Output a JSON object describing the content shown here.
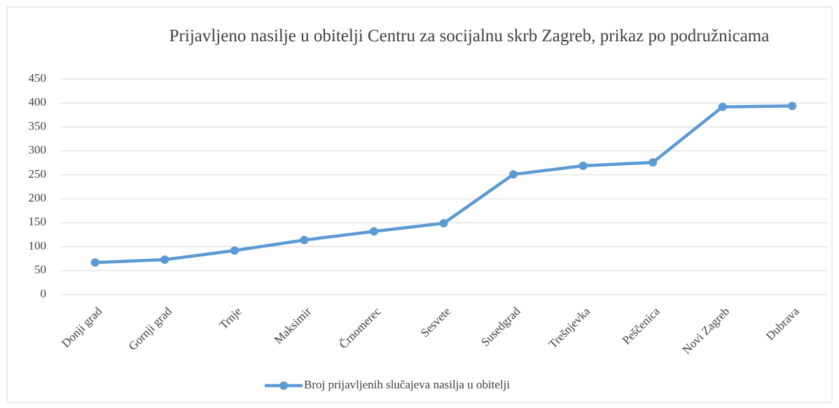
{
  "chart_data": {
    "type": "line",
    "title": "Prijavljeno nasilje u obitelji  Centru za socijalnu skrb Zagreb, prikaz po podružnicama",
    "categories": [
      "Donji grad",
      "Gornji grad",
      "Trnje",
      "Maksimir",
      "Črnomerec",
      "Sesvete",
      "Susedgrad",
      "Trešnjevka",
      "Peščenica",
      "Novi Zagreb",
      "Dubrava"
    ],
    "series": [
      {
        "name": "Broj prijavljenih slučajeva nasilja u obitelji",
        "color": "#5b9bd5",
        "values": [
          67,
          73,
          92,
          114,
          132,
          149,
          251,
          269,
          276,
          392,
          394
        ]
      }
    ],
    "ylim": [
      0,
      450
    ],
    "yticks": [
      0,
      50,
      100,
      150,
      200,
      250,
      300,
      350,
      400,
      450
    ],
    "grid": true
  }
}
